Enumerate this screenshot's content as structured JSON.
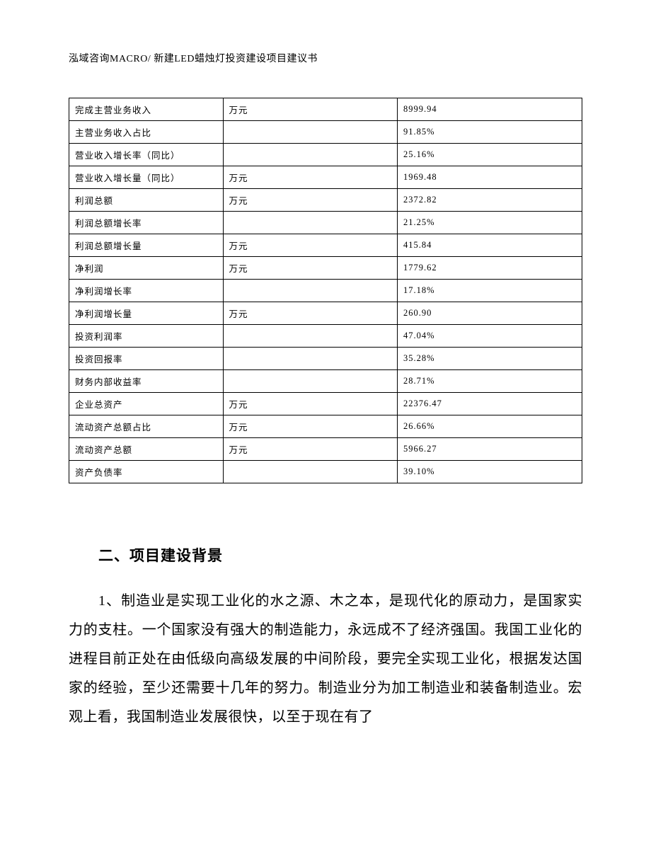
{
  "header": {
    "text": "泓域咨询MACRO/   新建LED蜡烛灯投资建设项目建议书"
  },
  "table": {
    "rows": [
      {
        "label": "完成主营业务收入",
        "unit": "万元",
        "value": "8999.94"
      },
      {
        "label": "主营业务收入占比",
        "unit": "",
        "value": "91.85%"
      },
      {
        "label": "营业收入增长率（同比）",
        "unit": "",
        "value": "25.16%"
      },
      {
        "label": "营业收入增长量（同比）",
        "unit": "万元",
        "value": "1969.48"
      },
      {
        "label": "利润总额",
        "unit": "万元",
        "value": "2372.82"
      },
      {
        "label": "利润总额增长率",
        "unit": "",
        "value": "21.25%"
      },
      {
        "label": "利润总额增长量",
        "unit": "万元",
        "value": "415.84"
      },
      {
        "label": "净利润",
        "unit": "万元",
        "value": "1779.62"
      },
      {
        "label": "净利润增长率",
        "unit": "",
        "value": "17.18%"
      },
      {
        "label": "净利润增长量",
        "unit": "万元",
        "value": "260.90"
      },
      {
        "label": "投资利润率",
        "unit": "",
        "value": "47.04%"
      },
      {
        "label": "投资回报率",
        "unit": "",
        "value": "35.28%"
      },
      {
        "label": "财务内部收益率",
        "unit": "",
        "value": "28.71%"
      },
      {
        "label": "企业总资产",
        "unit": "万元",
        "value": "22376.47"
      },
      {
        "label": "流动资产总额占比",
        "unit": "万元",
        "value": "26.66%"
      },
      {
        "label": "流动资产总额",
        "unit": "万元",
        "value": "5966.27"
      },
      {
        "label": "资产负债率",
        "unit": "",
        "value": "39.10%"
      }
    ]
  },
  "section": {
    "title": "二、项目建设背景",
    "paragraph": "1、制造业是实现工业化的水之源、木之本，是现代化的原动力，是国家实力的支柱。一个国家没有强大的制造能力，永远成不了经济强国。我国工业化的进程目前正处在由低级向高级发展的中间阶段，要完全实现工业化，根据发达国家的经验，至少还需要十几年的努力。制造业分为加工制造业和装备制造业。宏观上看，我国制造业发展很快，以至于现在有了"
  }
}
